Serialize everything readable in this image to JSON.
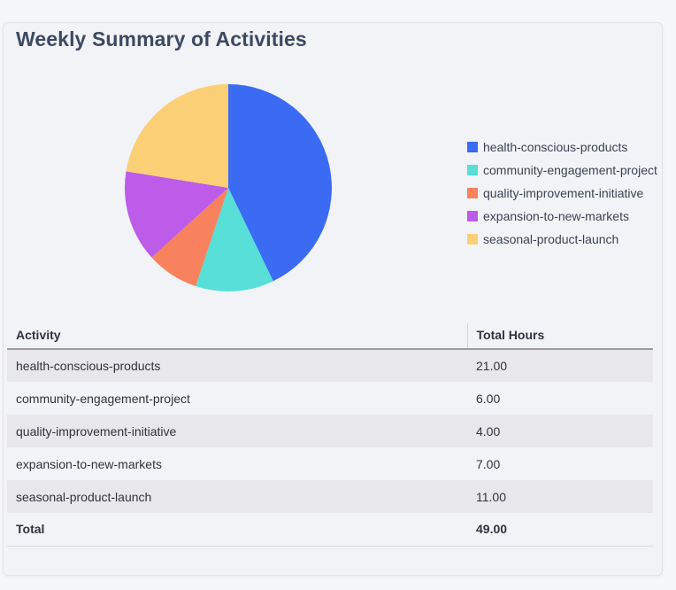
{
  "card": {
    "title": "Weekly Summary of Activities"
  },
  "chart_data": {
    "type": "pie",
    "title": "",
    "categories": [
      "health-conscious-products",
      "community-engagement-project",
      "quality-improvement-initiative",
      "expansion-to-new-markets",
      "seasonal-product-launch"
    ],
    "values": [
      21,
      6,
      4,
      7,
      11
    ],
    "total": 49,
    "colors": [
      "#3b6bf2",
      "#57dfd8",
      "#f8815e",
      "#bc5ce8",
      "#fbcf76"
    ],
    "legend_position": "right",
    "start_angle_deg": -90,
    "direction": "clockwise"
  },
  "table": {
    "columns": [
      "Activity",
      "Total Hours"
    ],
    "rows": [
      {
        "activity": "health-conscious-products",
        "total_hours": "21.00"
      },
      {
        "activity": "community-engagement-project",
        "total_hours": "6.00"
      },
      {
        "activity": "quality-improvement-initiative",
        "total_hours": "4.00"
      },
      {
        "activity": "expansion-to-new-markets",
        "total_hours": "7.00"
      },
      {
        "activity": "seasonal-product-launch",
        "total_hours": "11.00"
      }
    ],
    "total_row": {
      "activity": "Total",
      "total_hours": "49.00"
    }
  },
  "colors": {
    "page_bg": "#f6f7f9",
    "card_bg": "#f2f3f6",
    "card_border": "#e3e4e8",
    "title_text": "#3c4a63",
    "body_text": "#31333d",
    "row_stripe": "#e8e8eb",
    "header_underline": "#9b9ca2"
  }
}
